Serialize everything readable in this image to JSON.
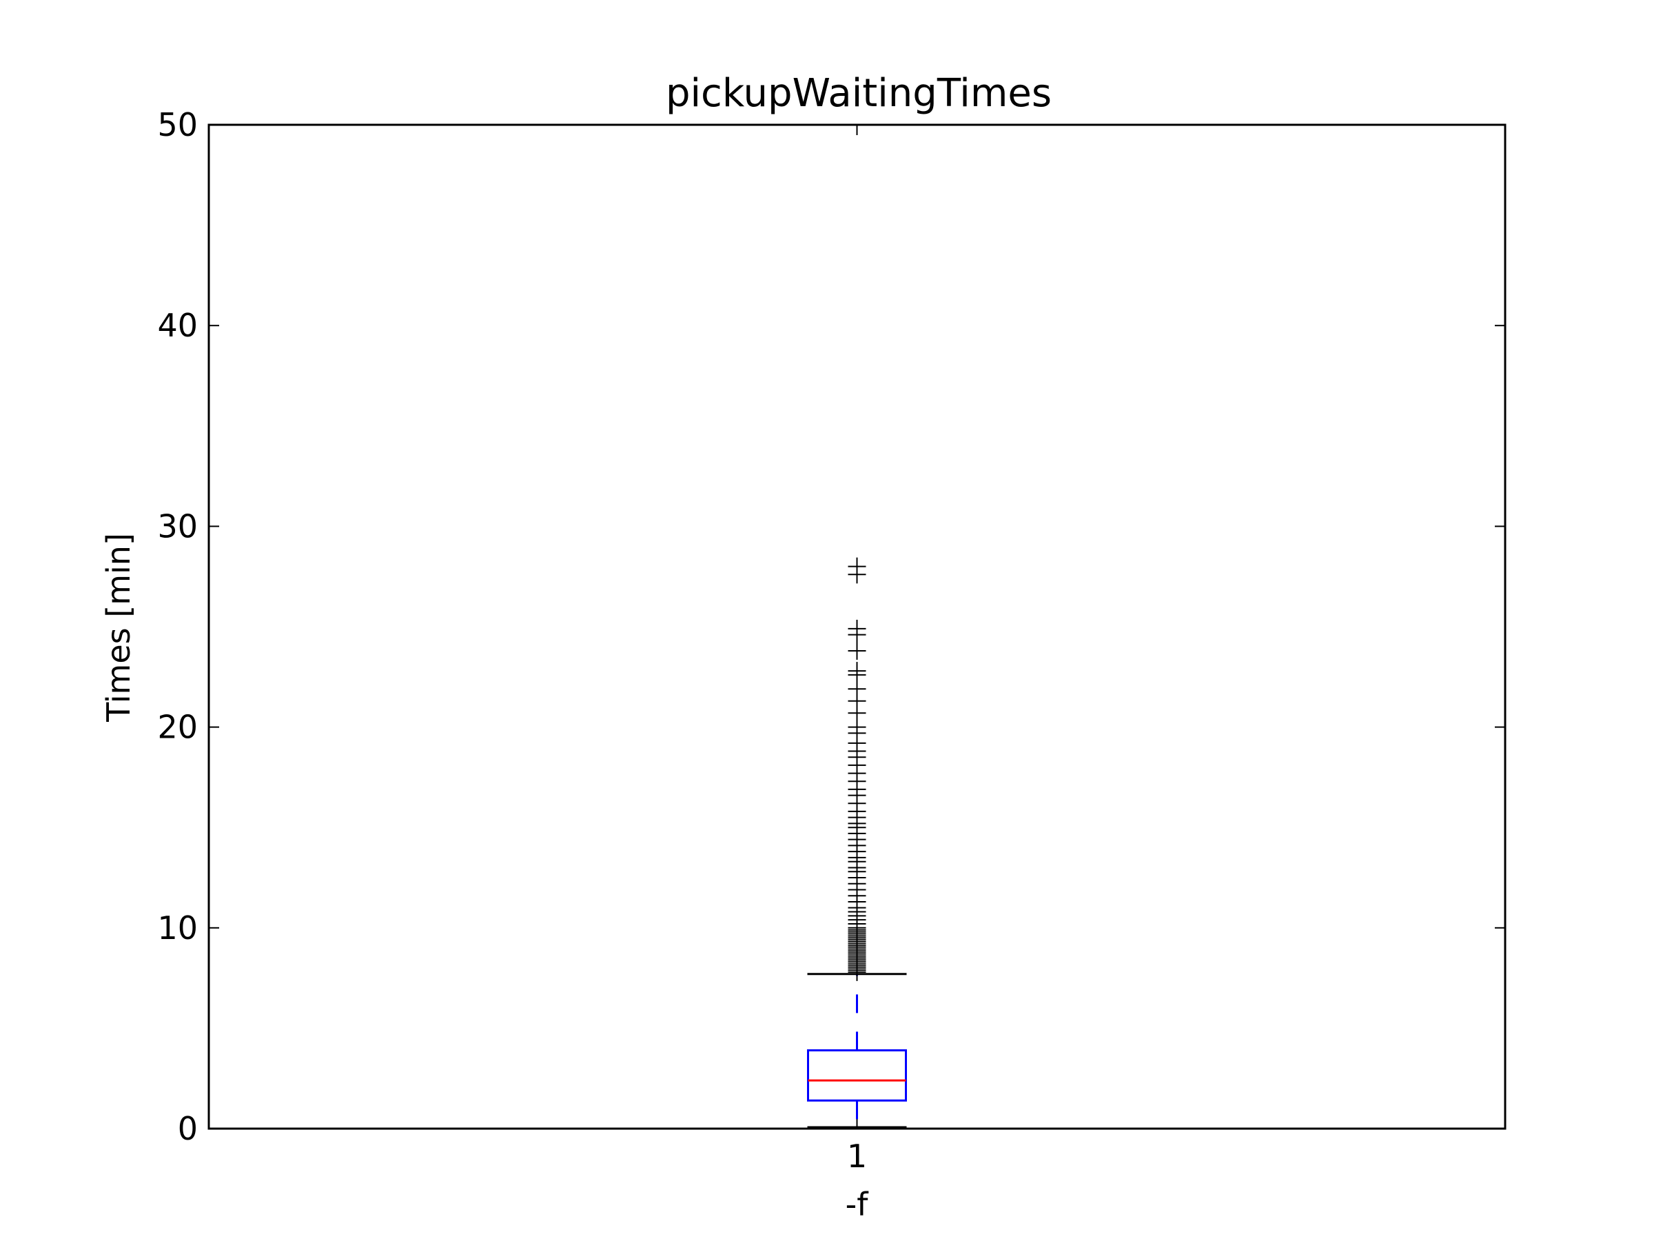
{
  "chart_data": {
    "type": "box",
    "title": "pickupWaitingTimes",
    "xlabel": "-f",
    "ylabel": "Times [min]",
    "ylim": [
      0,
      50
    ],
    "yticks": [
      "0",
      "10",
      "20",
      "30",
      "40",
      "50"
    ],
    "categories": [
      "1"
    ],
    "grid": false,
    "legend": "none",
    "colors": {
      "box": "#0000ff",
      "whisker": "#0000ff",
      "median": "#ff0000",
      "cap": "#000000",
      "flier": "#000000",
      "axes": "#000000"
    },
    "boxes": [
      {
        "label": "1",
        "whisker_low": 0.0,
        "q1": 1.4,
        "median": 2.4,
        "q3": 3.9,
        "whisker_high": 7.7,
        "fliers": [
          7.8,
          7.9,
          8.0,
          8.1,
          8.2,
          8.3,
          8.4,
          8.5,
          8.6,
          8.7,
          8.8,
          8.9,
          9.0,
          9.1,
          9.2,
          9.3,
          9.4,
          9.5,
          9.6,
          9.7,
          9.8,
          9.9,
          10.0,
          10.2,
          10.4,
          10.6,
          10.8,
          11.0,
          11.3,
          11.6,
          11.9,
          12.2,
          12.5,
          12.8,
          13.0,
          13.3,
          13.5,
          13.8,
          14.1,
          14.4,
          14.7,
          15.0,
          15.2,
          15.5,
          15.8,
          16.2,
          16.6,
          16.9,
          17.3,
          17.7,
          18.1,
          18.5,
          18.8,
          19.2,
          19.7,
          20.0,
          20.7,
          21.3,
          21.9,
          22.6,
          22.8,
          23.8,
          24.6,
          24.9,
          27.6,
          28.0
        ]
      }
    ]
  }
}
